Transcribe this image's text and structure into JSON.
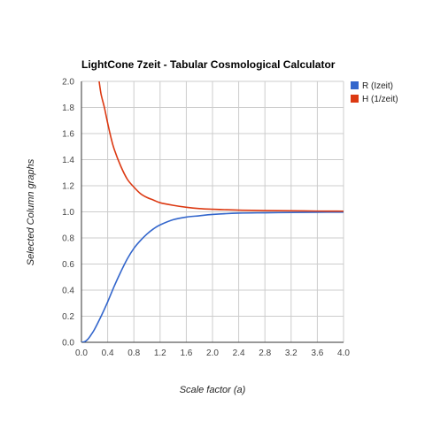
{
  "chart_data": {
    "type": "line",
    "title": "LightCone 7zeit - Tabular Cosmological Calculator",
    "xlabel": "Scale factor (a)",
    "ylabel": "Selected Column graphs",
    "xlim": [
      0,
      4
    ],
    "ylim": [
      0,
      2
    ],
    "x_ticks": [
      "0.0",
      "0.4",
      "0.8",
      "1.2",
      "1.6",
      "2.0",
      "2.4",
      "2.8",
      "3.2",
      "3.6",
      "4.0"
    ],
    "y_ticks": [
      "0.0",
      "0.2",
      "0.4",
      "0.6",
      "0.8",
      "1.0",
      "1.2",
      "1.4",
      "1.6",
      "1.8",
      "2.0"
    ],
    "grid": true,
    "legend_position": "right",
    "series": [
      {
        "name": "R (Izeit)",
        "color": "#3366cc",
        "x": [
          0,
          0.05,
          0.1,
          0.15,
          0.2,
          0.3,
          0.4,
          0.5,
          0.6,
          0.7,
          0.8,
          0.9,
          1.0,
          1.1,
          1.2,
          1.4,
          1.6,
          1.8,
          2.0,
          2.4,
          2.8,
          3.2,
          3.6,
          4.0
        ],
        "values": [
          0.0,
          0.005,
          0.025,
          0.06,
          0.1,
          0.2,
          0.31,
          0.43,
          0.54,
          0.64,
          0.72,
          0.78,
          0.83,
          0.87,
          0.9,
          0.94,
          0.96,
          0.97,
          0.98,
          0.99,
          0.993,
          0.995,
          0.997,
          0.998
        ]
      },
      {
        "name": "H (1/zeit)",
        "color": "#dc3912",
        "x": [
          0.27,
          0.3,
          0.35,
          0.4,
          0.45,
          0.5,
          0.6,
          0.7,
          0.8,
          0.9,
          1.0,
          1.1,
          1.2,
          1.4,
          1.6,
          1.8,
          2.0,
          2.4,
          2.8,
          3.2,
          3.6,
          4.0
        ],
        "values": [
          2.0,
          1.9,
          1.8,
          1.68,
          1.57,
          1.48,
          1.35,
          1.25,
          1.19,
          1.14,
          1.11,
          1.09,
          1.07,
          1.05,
          1.035,
          1.025,
          1.02,
          1.013,
          1.01,
          1.008,
          1.006,
          1.005
        ]
      }
    ]
  }
}
